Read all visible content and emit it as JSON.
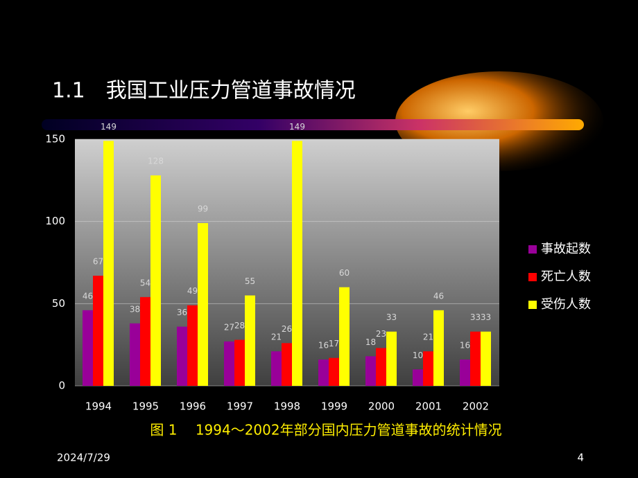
{
  "slide": {
    "title": "1.1　我国工业压力管道事故情况",
    "date": "2024/7/29",
    "page": "4"
  },
  "chart_data": {
    "type": "bar",
    "title": "图 1　 1994～2002年部分国内压力管道事故的统计情况",
    "categories": [
      "1994",
      "1995",
      "1996",
      "1997",
      "1998",
      "1999",
      "2000",
      "2001",
      "2002"
    ],
    "series": [
      {
        "name": "事故起数",
        "color": "#990099",
        "values": [
          46,
          38,
          36,
          27,
          21,
          16,
          18,
          10,
          16
        ]
      },
      {
        "name": "死亡人数",
        "color": "#ff0000",
        "values": [
          67,
          54,
          49,
          28,
          26,
          17,
          23,
          21,
          33
        ]
      },
      {
        "name": "受伤人数",
        "color": "#ffff00",
        "values": [
          149,
          128,
          99,
          55,
          149,
          60,
          33,
          46,
          33
        ]
      }
    ],
    "ylim": [
      0,
      150
    ],
    "yticks": [
      0,
      50,
      100,
      150
    ],
    "grid": true,
    "legend": "right"
  }
}
